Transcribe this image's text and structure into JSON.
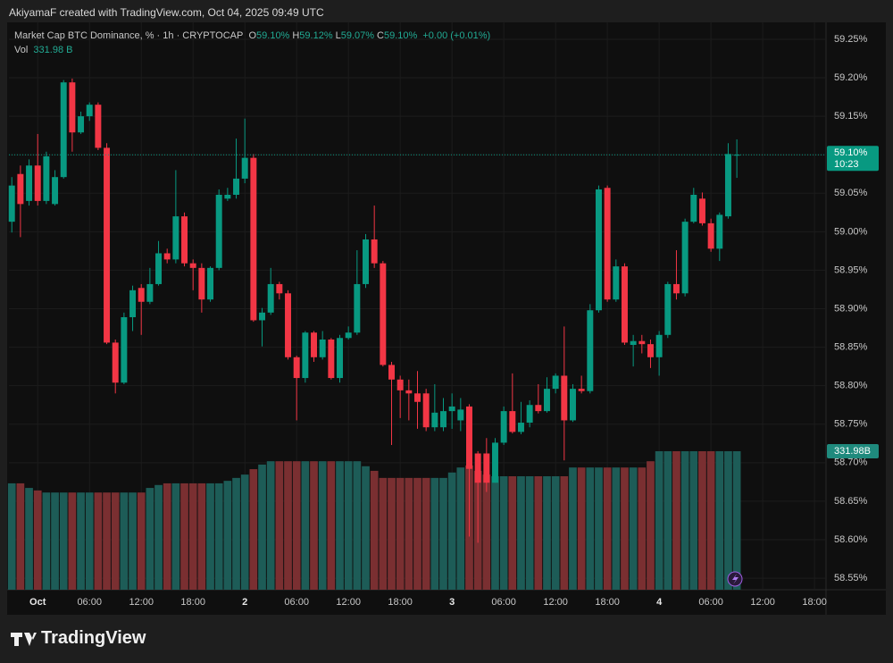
{
  "header": {
    "title": "AkiyamaF created with TradingView.com, Oct 04, 2025 09:49 UTC",
    "brand": "TradingView"
  },
  "chart_data": {
    "type": "candlestick",
    "title": "Market Cap BTC Dominance, % · 1h · CRYPTOCAP",
    "ohlc_legend": [
      {
        "label": "O",
        "value": "59.10%"
      },
      {
        "label": "H",
        "value": "59.12%"
      },
      {
        "label": "L",
        "value": "59.07%"
      },
      {
        "label": "C",
        "value": "59.10%"
      }
    ],
    "change": "+0.00 (+0.01%)",
    "volume_legend": {
      "label": "Vol",
      "value": "331.98 B"
    },
    "last_price_label": "59.10%",
    "countdown": "10:23",
    "volume_axis_label": "331.98B",
    "up_color": "#089981",
    "down_color": "#f23645",
    "volume_up_color": "#1d5c57",
    "volume_down_color": "#7a2f31",
    "grid": true,
    "x": [
      "2025-09-30 21:00",
      "2025-09-30 22:00",
      "2025-09-30 23:00",
      "2025-10-01 00:00",
      "2025-10-01 01:00",
      "2025-10-01 02:00",
      "2025-10-01 03:00",
      "2025-10-01 04:00",
      "2025-10-01 05:00",
      "2025-10-01 06:00",
      "2025-10-01 07:00",
      "2025-10-01 08:00",
      "2025-10-01 09:00",
      "2025-10-01 10:00",
      "2025-10-01 11:00",
      "2025-10-01 12:00",
      "2025-10-01 13:00",
      "2025-10-01 14:00",
      "2025-10-01 15:00",
      "2025-10-01 16:00",
      "2025-10-01 17:00",
      "2025-10-01 18:00",
      "2025-10-01 19:00",
      "2025-10-01 20:00",
      "2025-10-01 21:00",
      "2025-10-01 22:00",
      "2025-10-01 23:00",
      "2025-10-02 00:00",
      "2025-10-02 01:00",
      "2025-10-02 02:00",
      "2025-10-02 03:00",
      "2025-10-02 04:00",
      "2025-10-02 05:00",
      "2025-10-02 06:00",
      "2025-10-02 07:00",
      "2025-10-02 08:00",
      "2025-10-02 09:00",
      "2025-10-02 10:00",
      "2025-10-02 11:00",
      "2025-10-02 12:00",
      "2025-10-02 13:00",
      "2025-10-02 14:00",
      "2025-10-02 15:00",
      "2025-10-02 16:00",
      "2025-10-02 17:00",
      "2025-10-02 18:00",
      "2025-10-02 19:00",
      "2025-10-02 20:00",
      "2025-10-02 21:00",
      "2025-10-02 22:00",
      "2025-10-02 23:00",
      "2025-10-03 00:00",
      "2025-10-03 01:00",
      "2025-10-03 02:00",
      "2025-10-03 03:00",
      "2025-10-03 04:00",
      "2025-10-03 05:00",
      "2025-10-03 06:00",
      "2025-10-03 07:00",
      "2025-10-03 08:00",
      "2025-10-03 09:00",
      "2025-10-03 10:00",
      "2025-10-03 11:00",
      "2025-10-03 12:00",
      "2025-10-03 13:00",
      "2025-10-03 14:00",
      "2025-10-03 15:00",
      "2025-10-03 16:00",
      "2025-10-03 17:00",
      "2025-10-03 18:00",
      "2025-10-03 19:00",
      "2025-10-03 20:00",
      "2025-10-03 21:00",
      "2025-10-03 22:00",
      "2025-10-03 23:00",
      "2025-10-04 00:00",
      "2025-10-04 01:00",
      "2025-10-04 02:00",
      "2025-10-04 03:00",
      "2025-10-04 04:00",
      "2025-10-04 05:00",
      "2025-10-04 06:00",
      "2025-10-04 07:00",
      "2025-10-04 08:00",
      "2025-10-04 09:00"
    ],
    "open": [
      59.013,
      59.075,
      59.04,
      59.086,
      59.04,
      59.036,
      59.071,
      59.194,
      59.129,
      59.15,
      59.165,
      59.109,
      58.856,
      58.804,
      58.889,
      58.927,
      58.909,
      58.932,
      58.972,
      58.964,
      59.02,
      58.959,
      58.953,
      58.912,
      58.953,
      59.043,
      59.048,
      59.069,
      59.096,
      58.885,
      58.895,
      58.932,
      58.92,
      58.837,
      58.81,
      58.869,
      58.837,
      58.86,
      58.81,
      58.862,
      58.869,
      58.932,
      58.99,
      58.959,
      58.827,
      58.808,
      58.794,
      58.79,
      58.79,
      58.746,
      58.746,
      58.767,
      58.755,
      58.773,
      58.712,
      58.712,
      58.674,
      58.726,
      58.767,
      58.74,
      58.752,
      58.775,
      58.767,
      58.796,
      58.813,
      58.755,
      58.796,
      58.793,
      58.898,
      59.057,
      58.912,
      58.955,
      58.853,
      58.858,
      58.854,
      58.837,
      58.866,
      58.932,
      58.92,
      59.013,
      59.043,
      59.011,
      58.978,
      59.02,
      59.1
    ],
    "high": [
      59.071,
      59.086,
      59.094,
      59.127,
      59.104,
      59.08,
      59.197,
      59.199,
      59.156,
      59.168,
      59.168,
      59.115,
      58.86,
      58.895,
      58.93,
      58.932,
      58.953,
      58.988,
      58.978,
      59.08,
      59.025,
      58.964,
      58.959,
      58.955,
      59.055,
      59.057,
      59.121,
      59.147,
      59.101,
      58.901,
      58.953,
      58.935,
      58.924,
      58.839,
      58.871,
      58.871,
      58.871,
      58.862,
      58.866,
      58.877,
      58.976,
      58.997,
      59.034,
      58.962,
      58.831,
      58.813,
      58.808,
      58.819,
      58.796,
      58.802,
      58.784,
      58.79,
      58.784,
      58.776,
      58.715,
      58.732,
      58.732,
      58.773,
      58.816,
      58.779,
      58.781,
      58.802,
      58.811,
      58.816,
      58.877,
      58.802,
      58.813,
      58.906,
      59.06,
      59.06,
      58.964,
      58.959,
      58.866,
      58.866,
      58.86,
      58.871,
      58.935,
      58.976,
      59.017,
      59.057,
      59.051,
      59.017,
      59.025,
      59.115,
      59.12
    ],
    "low": [
      58.999,
      58.993,
      59.034,
      59.034,
      59.036,
      59.034,
      59.069,
      59.104,
      59.127,
      59.144,
      59.106,
      58.854,
      58.79,
      58.802,
      58.871,
      58.866,
      58.906,
      58.93,
      58.959,
      58.959,
      58.955,
      58.924,
      58.895,
      58.909,
      58.95,
      59.04,
      59.043,
      59.063,
      58.883,
      58.851,
      58.892,
      58.912,
      58.834,
      58.755,
      58.804,
      58.831,
      58.834,
      58.808,
      58.804,
      58.86,
      58.866,
      58.927,
      58.953,
      58.825,
      58.723,
      58.758,
      58.755,
      58.744,
      58.741,
      58.741,
      58.741,
      58.744,
      58.741,
      58.604,
      58.596,
      58.662,
      58.674,
      58.723,
      58.738,
      58.737,
      58.746,
      58.764,
      58.765,
      58.79,
      58.703,
      58.753,
      58.79,
      58.79,
      58.895,
      58.909,
      58.909,
      58.853,
      58.825,
      58.842,
      58.823,
      58.813,
      58.862,
      58.912,
      58.916,
      59.011,
      59.008,
      58.974,
      58.962,
      59.017,
      59.07
    ],
    "close": [
      59.06,
      59.036,
      59.086,
      59.04,
      59.098,
      59.071,
      59.194,
      59.129,
      59.15,
      59.165,
      59.109,
      58.856,
      58.804,
      58.889,
      58.924,
      58.909,
      58.932,
      58.972,
      58.964,
      59.02,
      58.959,
      58.953,
      58.912,
      58.953,
      59.048,
      59.048,
      59.069,
      59.096,
      58.885,
      58.895,
      58.932,
      58.92,
      58.837,
      58.81,
      58.869,
      58.837,
      58.86,
      58.81,
      58.862,
      58.869,
      58.932,
      58.99,
      58.959,
      58.827,
      58.808,
      58.794,
      58.79,
      58.779,
      58.746,
      58.765,
      58.767,
      58.773,
      58.769,
      58.692,
      58.674,
      58.674,
      58.726,
      58.767,
      58.74,
      58.752,
      58.775,
      58.767,
      58.796,
      58.813,
      58.755,
      58.796,
      58.793,
      58.898,
      59.055,
      58.912,
      58.955,
      58.856,
      58.858,
      58.854,
      58.837,
      58.866,
      58.932,
      58.92,
      59.013,
      59.048,
      59.011,
      58.978,
      59.022,
      59.101,
      59.1
    ],
    "volume": [
      255,
      255,
      244,
      238,
      233,
      233,
      233,
      233,
      233,
      233,
      233,
      233,
      233,
      233,
      233,
      233,
      244,
      251,
      255,
      255,
      255,
      255,
      255,
      255,
      255,
      261,
      268,
      276,
      289,
      300,
      308,
      308,
      308,
      308,
      308,
      308,
      308,
      308,
      308,
      308,
      308,
      296,
      285,
      268,
      268,
      268,
      268,
      268,
      268,
      268,
      268,
      281,
      293,
      298,
      285,
      276,
      272,
      272,
      272,
      272,
      272,
      272,
      272,
      272,
      272,
      293,
      293,
      293,
      293,
      293,
      293,
      293,
      293,
      293,
      308,
      332,
      332,
      332,
      332,
      332,
      332,
      332,
      332,
      332,
      331.98
    ],
    "volume_ylim": [
      0,
      1360
    ],
    "xlim": [
      "2025-09-30 20:40",
      "2025-10-04 19:20"
    ],
    "xticks": [
      {
        "value": "2025-10-01 00:00",
        "label": "Oct"
      },
      {
        "value": "2025-10-01 06:00",
        "label": "06:00"
      },
      {
        "value": "2025-10-01 12:00",
        "label": "12:00"
      },
      {
        "value": "2025-10-01 18:00",
        "label": "18:00"
      },
      {
        "value": "2025-10-02 00:00",
        "label": "2"
      },
      {
        "value": "2025-10-02 06:00",
        "label": "06:00"
      },
      {
        "value": "2025-10-02 12:00",
        "label": "12:00"
      },
      {
        "value": "2025-10-02 18:00",
        "label": "18:00"
      },
      {
        "value": "2025-10-03 00:00",
        "label": "3"
      },
      {
        "value": "2025-10-03 06:00",
        "label": "06:00"
      },
      {
        "value": "2025-10-03 12:00",
        "label": "12:00"
      },
      {
        "value": "2025-10-03 18:00",
        "label": "18:00"
      },
      {
        "value": "2025-10-04 00:00",
        "label": "4"
      },
      {
        "value": "2025-10-04 06:00",
        "label": "06:00"
      },
      {
        "value": "2025-10-04 12:00",
        "label": "12:00"
      },
      {
        "value": "2025-10-04 18:00",
        "label": "18:00"
      }
    ],
    "ylim": [
      58.535,
      59.272
    ],
    "yticks": [
      {
        "value": 59.25,
        "label": "59.25%"
      },
      {
        "value": 59.2,
        "label": "59.20%"
      },
      {
        "value": 59.15,
        "label": "59.15%"
      },
      {
        "value": 59.1,
        "label": "59.10%"
      },
      {
        "value": 59.05,
        "label": "59.05%"
      },
      {
        "value": 59.0,
        "label": "59.00%"
      },
      {
        "value": 58.95,
        "label": "58.95%"
      },
      {
        "value": 58.9,
        "label": "58.90%"
      },
      {
        "value": 58.85,
        "label": "58.85%"
      },
      {
        "value": 58.8,
        "label": "58.80%"
      },
      {
        "value": 58.75,
        "label": "58.75%"
      },
      {
        "value": 58.7,
        "label": "58.70%"
      },
      {
        "value": 58.65,
        "label": "58.65%"
      },
      {
        "value": 58.6,
        "label": "58.60%"
      },
      {
        "value": 58.55,
        "label": "58.55%"
      }
    ]
  }
}
